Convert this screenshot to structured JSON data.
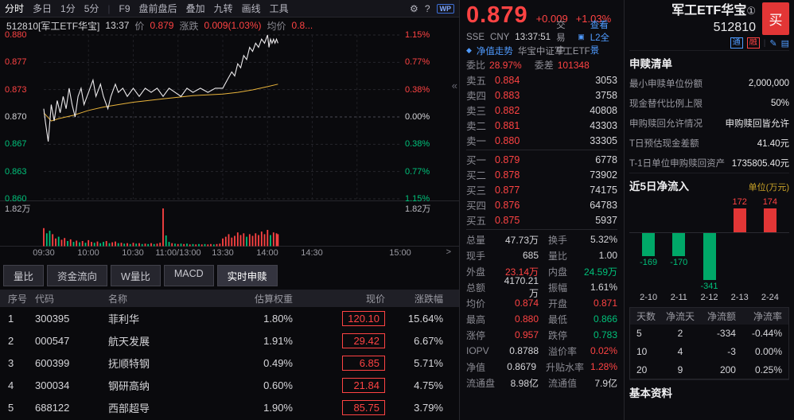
{
  "toolbar": {
    "periods": [
      {
        "label": "分时",
        "active": true
      },
      {
        "label": "多日",
        "arrow": true
      },
      {
        "label": "1分"
      },
      {
        "label": "5分",
        "arrow": true
      }
    ],
    "tools": [
      {
        "label": "F9"
      },
      {
        "label": "盘前盘后"
      },
      {
        "label": "叠加",
        "arrow": true
      },
      {
        "label": "九转",
        "arrow": true
      },
      {
        "label": "画线"
      },
      {
        "label": "工具",
        "arrow": true
      }
    ],
    "wp": "WP"
  },
  "icons": {
    "gear": "⚙",
    "help": "?",
    "collapse": "«",
    "next": ">",
    "l2": "▣",
    "nav": "◆",
    "pencil": "✎",
    "list": "▤"
  },
  "chart_header": {
    "code_name": "512810[军工ETF华宝]",
    "time": "13:37",
    "price_label": "价",
    "price": "0.879",
    "chg_label": "涨跌",
    "chg": "0.009(1.03%)",
    "avg_label": "均价",
    "avg": "0.8..."
  },
  "axis": {
    "y_left": [
      "0.880",
      "0.877",
      "0.873",
      "0.870",
      "0.867",
      "0.863",
      "0.860"
    ],
    "y_right": [
      "1.15%",
      "0.77%",
      "0.38%",
      "0.00%",
      "0.38%",
      "0.77%",
      "1.15%"
    ],
    "vol_label": "1.82万",
    "x_labels": [
      "09:30",
      "10:00",
      "10:30",
      "11:00/13:00",
      "13:30",
      "14:00",
      "14:30",
      "15:00"
    ]
  },
  "chart_data": {
    "type": "line",
    "prev_close": 0.87,
    "y_range": [
      0.86,
      0.88
    ],
    "session_minutes": 240,
    "last_minute": 157,
    "price": [
      [
        0,
        0.871
      ],
      [
        1,
        0.8695
      ],
      [
        3,
        0.867
      ],
      [
        5,
        0.8715
      ],
      [
        7,
        0.8695
      ],
      [
        9,
        0.872
      ],
      [
        11,
        0.8705
      ],
      [
        13,
        0.8725
      ],
      [
        15,
        0.871
      ],
      [
        17,
        0.8735
      ],
      [
        19,
        0.8715
      ],
      [
        21,
        0.87
      ],
      [
        23,
        0.8725
      ],
      [
        25,
        0.8735
      ],
      [
        27,
        0.8715
      ],
      [
        30,
        0.873
      ],
      [
        33,
        0.8745
      ],
      [
        35,
        0.8725
      ],
      [
        38,
        0.874
      ],
      [
        40,
        0.8725
      ],
      [
        43,
        0.871
      ],
      [
        45,
        0.8725
      ],
      [
        48,
        0.874
      ],
      [
        50,
        0.873
      ],
      [
        53,
        0.8735
      ],
      [
        56,
        0.8725
      ],
      [
        60,
        0.8735
      ],
      [
        64,
        0.8725
      ],
      [
        68,
        0.8735
      ],
      [
        72,
        0.873
      ],
      [
        76,
        0.8735
      ],
      [
        80,
        0.8725
      ],
      [
        84,
        0.8735
      ],
      [
        88,
        0.873
      ],
      [
        92,
        0.8725
      ],
      [
        96,
        0.8735
      ],
      [
        100,
        0.873
      ],
      [
        105,
        0.8735
      ],
      [
        110,
        0.873
      ],
      [
        115,
        0.8735
      ],
      [
        120,
        0.8735
      ],
      [
        123,
        0.8745
      ],
      [
        126,
        0.8755
      ],
      [
        128,
        0.875
      ],
      [
        130,
        0.8765
      ],
      [
        132,
        0.876
      ],
      [
        134,
        0.8775
      ],
      [
        136,
        0.877
      ],
      [
        138,
        0.8785
      ],
      [
        140,
        0.878
      ],
      [
        142,
        0.879
      ],
      [
        144,
        0.8785
      ],
      [
        146,
        0.8795
      ],
      [
        148,
        0.879
      ],
      [
        150,
        0.88
      ],
      [
        151,
        0.8785
      ],
      [
        152,
        0.8795
      ],
      [
        153,
        0.879
      ],
      [
        154,
        0.8795
      ],
      [
        155,
        0.879
      ],
      [
        156,
        0.8795
      ],
      [
        157,
        0.879
      ]
    ],
    "avg": [
      [
        0,
        0.8705
      ],
      [
        5,
        0.8695
      ],
      [
        10,
        0.8698
      ],
      [
        15,
        0.87
      ],
      [
        20,
        0.8702
      ],
      [
        25,
        0.8705
      ],
      [
        30,
        0.8708
      ],
      [
        40,
        0.8712
      ],
      [
        50,
        0.8715
      ],
      [
        60,
        0.8718
      ],
      [
        70,
        0.872
      ],
      [
        80,
        0.8722
      ],
      [
        90,
        0.8724
      ],
      [
        100,
        0.8726
      ],
      [
        110,
        0.8727
      ],
      [
        120,
        0.8728
      ],
      [
        130,
        0.873
      ],
      [
        140,
        0.8733
      ],
      [
        150,
        0.8737
      ],
      [
        157,
        0.874
      ]
    ],
    "volume": [
      [
        0,
        0.42,
        "r"
      ],
      [
        2,
        0.3,
        "g"
      ],
      [
        4,
        0.36,
        "g"
      ],
      [
        6,
        0.28,
        "r"
      ],
      [
        8,
        0.18,
        "r"
      ],
      [
        10,
        0.22,
        "g"
      ],
      [
        12,
        0.15,
        "r"
      ],
      [
        14,
        0.19,
        "r"
      ],
      [
        16,
        0.12,
        "g"
      ],
      [
        18,
        0.16,
        "r"
      ],
      [
        20,
        0.1,
        "g"
      ],
      [
        22,
        0.13,
        "r"
      ],
      [
        24,
        0.09,
        "g"
      ],
      [
        26,
        0.12,
        "r"
      ],
      [
        28,
        0.08,
        "g"
      ],
      [
        30,
        0.14,
        "r"
      ],
      [
        32,
        0.1,
        "r"
      ],
      [
        34,
        0.08,
        "g"
      ],
      [
        36,
        0.11,
        "r"
      ],
      [
        38,
        0.07,
        "g"
      ],
      [
        40,
        0.1,
        "g"
      ],
      [
        42,
        0.12,
        "r"
      ],
      [
        44,
        0.07,
        "g"
      ],
      [
        46,
        0.09,
        "r"
      ],
      [
        48,
        0.11,
        "r"
      ],
      [
        50,
        0.07,
        "g"
      ],
      [
        52,
        0.08,
        "r"
      ],
      [
        54,
        0.06,
        "g"
      ],
      [
        56,
        0.07,
        "r"
      ],
      [
        58,
        0.05,
        "g"
      ],
      [
        60,
        0.08,
        "r"
      ],
      [
        62,
        0.06,
        "g"
      ],
      [
        64,
        0.07,
        "r"
      ],
      [
        66,
        0.05,
        "g"
      ],
      [
        68,
        0.06,
        "r"
      ],
      [
        70,
        0.05,
        "g"
      ],
      [
        72,
        0.07,
        "r"
      ],
      [
        74,
        0.05,
        "g"
      ],
      [
        76,
        0.06,
        "r"
      ],
      [
        78,
        0.08,
        "r"
      ],
      [
        80,
        0.88,
        "r"
      ],
      [
        82,
        0.25,
        "g"
      ],
      [
        84,
        0.1,
        "g"
      ],
      [
        86,
        0.07,
        "r"
      ],
      [
        88,
        0.06,
        "g"
      ],
      [
        90,
        0.05,
        "r"
      ],
      [
        92,
        0.06,
        "g"
      ],
      [
        94,
        0.05,
        "r"
      ],
      [
        96,
        0.06,
        "g"
      ],
      [
        98,
        0.04,
        "r"
      ],
      [
        100,
        0.05,
        "g"
      ],
      [
        102,
        0.04,
        "r"
      ],
      [
        104,
        0.05,
        "g"
      ],
      [
        106,
        0.04,
        "r"
      ],
      [
        108,
        0.05,
        "g"
      ],
      [
        110,
        0.04,
        "r"
      ],
      [
        112,
        0.05,
        "r"
      ],
      [
        114,
        0.04,
        "g"
      ],
      [
        116,
        0.05,
        "r"
      ],
      [
        118,
        0.06,
        "r"
      ],
      [
        120,
        0.18,
        "r"
      ],
      [
        122,
        0.22,
        "r"
      ],
      [
        124,
        0.28,
        "r"
      ],
      [
        126,
        0.2,
        "r"
      ],
      [
        128,
        0.24,
        "r"
      ],
      [
        130,
        0.32,
        "r"
      ],
      [
        132,
        0.26,
        "r"
      ],
      [
        134,
        0.3,
        "r"
      ],
      [
        136,
        0.22,
        "g"
      ],
      [
        138,
        0.28,
        "r"
      ],
      [
        140,
        0.24,
        "r"
      ],
      [
        142,
        0.3,
        "r"
      ],
      [
        144,
        0.26,
        "r"
      ],
      [
        146,
        0.34,
        "r"
      ],
      [
        148,
        0.28,
        "r"
      ],
      [
        150,
        0.38,
        "r"
      ],
      [
        152,
        0.26,
        "g"
      ],
      [
        154,
        0.32,
        "r"
      ],
      [
        156,
        0.3,
        "r"
      ],
      [
        157,
        0.28,
        "r"
      ]
    ]
  },
  "tabs": [
    {
      "label": "量比"
    },
    {
      "label": "资金流向"
    },
    {
      "label": "W量比"
    },
    {
      "label": "MACD"
    },
    {
      "label": "实时申赎",
      "active": true
    }
  ],
  "holdings": {
    "headers": [
      "序号",
      "代码",
      "名称",
      "估算权重",
      "现价",
      "涨跌幅"
    ],
    "rows": [
      [
        "1",
        "300395",
        "菲利华",
        "1.80%",
        "120.10",
        "15.64%"
      ],
      [
        "2",
        "000547",
        "航天发展",
        "1.91%",
        "29.42",
        "6.67%"
      ],
      [
        "3",
        "600399",
        "抚顺特钢",
        "0.49%",
        "6.85",
        "5.71%"
      ],
      [
        "4",
        "300034",
        "钢研高纳",
        "0.60%",
        "21.84",
        "4.75%"
      ],
      [
        "5",
        "688122",
        "西部超导",
        "1.90%",
        "85.75",
        "3.79%"
      ]
    ]
  },
  "quote": {
    "price": "0.879",
    "change": "+0.009",
    "pct": "+1.03%",
    "exchange": "SSE",
    "currency": "CNY",
    "time": "13:37:51",
    "status": "交易中",
    "l2_link": "查看L2全景",
    "nav_link": "净值走势",
    "fund_name": "华宝中证军工ETF",
    "weibi_label": "委比",
    "weibi": "28.97%",
    "weicha_label": "委差",
    "weicha": "101348",
    "asks": [
      {
        "label": "卖五",
        "price": "0.884",
        "vol": "3053"
      },
      {
        "label": "卖四",
        "price": "0.883",
        "vol": "3758"
      },
      {
        "label": "卖三",
        "price": "0.882",
        "vol": "40808"
      },
      {
        "label": "卖二",
        "price": "0.881",
        "vol": "43303"
      },
      {
        "label": "卖一",
        "price": "0.880",
        "vol": "33305"
      }
    ],
    "bids": [
      {
        "label": "买一",
        "price": "0.879",
        "vol": "6778"
      },
      {
        "label": "买二",
        "price": "0.878",
        "vol": "73902"
      },
      {
        "label": "买三",
        "price": "0.877",
        "vol": "74175"
      },
      {
        "label": "买四",
        "price": "0.876",
        "vol": "64783"
      },
      {
        "label": "买五",
        "price": "0.875",
        "vol": "5937"
      }
    ],
    "stats": [
      {
        "l1": "总量",
        "v1": "47.73万",
        "c1": "wh",
        "l2": "换手",
        "v2": "5.32%",
        "c2": "wh"
      },
      {
        "l1": "现手",
        "v1": "685",
        "c1": "wh",
        "l2": "量比",
        "v2": "1.00",
        "c2": "wh"
      },
      {
        "l1": "外盘",
        "v1": "23.14万",
        "c1": "up",
        "l2": "内盘",
        "v2": "24.59万",
        "c2": "dn"
      },
      {
        "l1": "总额",
        "v1": "4170.21万",
        "c1": "wh",
        "l2": "振幅",
        "v2": "1.61%",
        "c2": "wh"
      },
      {
        "l1": "均价",
        "v1": "0.874",
        "c1": "up",
        "l2": "开盘",
        "v2": "0.871",
        "c2": "up"
      },
      {
        "l1": "最高",
        "v1": "0.880",
        "c1": "up",
        "l2": "最低",
        "v2": "0.866",
        "c2": "dn"
      },
      {
        "l1": "涨停",
        "v1": "0.957",
        "c1": "up",
        "l2": "跌停",
        "v2": "0.783",
        "c2": "dn"
      },
      {
        "l1": "IOPV",
        "v1": "0.8788",
        "c1": "wh",
        "l2": "溢价率",
        "v2": "0.02%",
        "c2": "up"
      },
      {
        "l1": "净值",
        "v1": "0.8679",
        "c1": "wh",
        "l2": "升贴水率",
        "v2": "1.28%",
        "c2": "up"
      },
      {
        "l1": "流通盘",
        "v1": "8.98亿",
        "c1": "wh",
        "l2": "流通值",
        "v2": "7.9亿",
        "c2": "wh"
      }
    ]
  },
  "right": {
    "title": "军工ETF华宝",
    "title_sup": "①",
    "buy_label": "买",
    "code": "512810",
    "badges": [
      {
        "t": "通",
        "c": "b"
      },
      {
        "t": "融",
        "c": "r"
      }
    ],
    "section_redeem": "申赎清单",
    "info": [
      {
        "label": "最小申赎单位份额",
        "value": "2,000,000"
      },
      {
        "label": "现金替代比例上限",
        "value": "50%"
      },
      {
        "label": "申购赎回允许情况",
        "value": "申购赎回皆允许"
      },
      {
        "label": "T日预估现金差额",
        "value": "41.40元"
      },
      {
        "label": "T-1日单位申购赎回资产",
        "value": "1735805.40元"
      }
    ],
    "section_flow": "近5日净流入",
    "flow_unit": "单位(万元)",
    "flow": {
      "dates": [
        "2-10",
        "2-11",
        "2-12",
        "2-13",
        "2-24"
      ],
      "values": [
        -169,
        -170,
        -341,
        172,
        174
      ]
    },
    "flow_table": {
      "headers": [
        "天数",
        "净流天",
        "净流额",
        "净流率"
      ],
      "rows": [
        [
          "5",
          "2",
          "-334",
          "-0.44%"
        ],
        [
          "10",
          "4",
          "-3",
          "0.00%"
        ],
        [
          "20",
          "9",
          "200",
          "0.25%"
        ]
      ]
    },
    "section_basic": "基本资料"
  }
}
